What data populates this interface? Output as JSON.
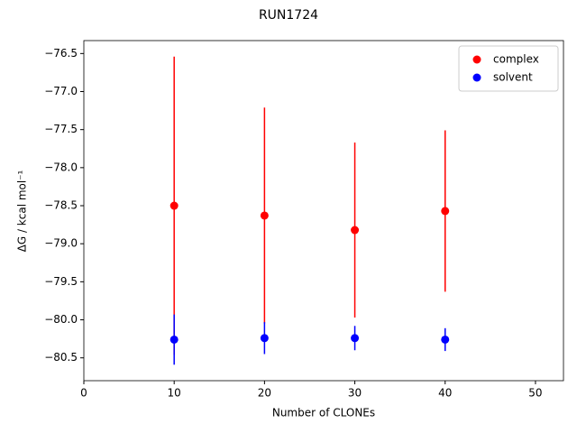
{
  "chart_data": {
    "type": "scatter",
    "title": "RUN1724",
    "x_label": "Number of CLONEs",
    "y_label": "ΔG / kcal mol⁻¹",
    "x": [
      10,
      20,
      30,
      40
    ],
    "series": [
      {
        "name": "complex",
        "color": "#ff0000",
        "values": [
          -78.5,
          -78.63,
          -78.82,
          -78.57
        ],
        "errors": [
          1.96,
          1.42,
          1.15,
          1.06
        ]
      },
      {
        "name": "solvent",
        "color": "#0000ff",
        "values": [
          -80.26,
          -80.24,
          -80.24,
          -80.26
        ],
        "errors": [
          0.33,
          0.21,
          0.16,
          0.15
        ]
      }
    ],
    "xlim": [
      0,
      53.1
    ],
    "xticks": [
      0,
      10,
      20,
      30,
      40,
      50
    ],
    "ylim": [
      -80.8,
      -76.33
    ],
    "yticks": [
      {
        "value": -80.5,
        "label": "−80.5"
      },
      {
        "value": -80.0,
        "label": "−80.0"
      },
      {
        "value": -79.5,
        "label": "−79.5"
      },
      {
        "value": -79.0,
        "label": "−79.0"
      },
      {
        "value": -78.5,
        "label": "−78.5"
      },
      {
        "value": -78.0,
        "label": "−78.0"
      },
      {
        "value": -77.5,
        "label": "−77.5"
      },
      {
        "value": -77.0,
        "label": "−77.0"
      },
      {
        "value": -76.5,
        "label": "−76.5"
      }
    ],
    "legend": "upper right",
    "grid": false
  }
}
